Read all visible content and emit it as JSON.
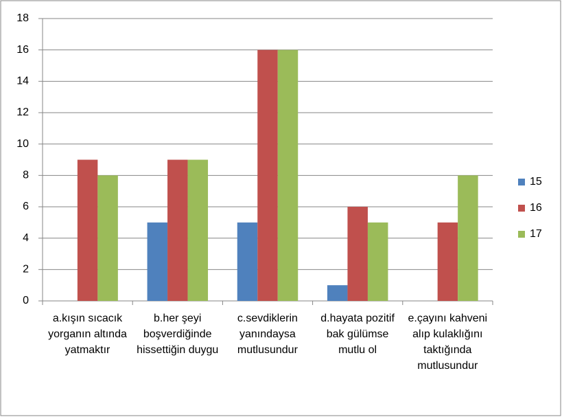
{
  "chart_data": {
    "type": "bar",
    "categories": [
      "a.kışın sıcacık yorganın altında yatmaktır",
      "b.her şeyi boşverdiğinde hissettiğin duygu",
      "c.sevdiklerin yanındaysa mutlusundur",
      "d.hayata pozitif bak gülümse mutlu ol",
      "e.çayını kahveni alıp kulaklığını taktığında mutlusundur"
    ],
    "series": [
      {
        "name": "15",
        "color": "#4f81bd",
        "values": [
          0,
          5,
          5,
          1,
          0
        ]
      },
      {
        "name": "16",
        "color": "#c0504d",
        "values": [
          9,
          9,
          16,
          6,
          5
        ]
      },
      {
        "name": "17",
        "color": "#9bbb59",
        "values": [
          8,
          9,
          16,
          5,
          8
        ]
      }
    ],
    "ylim": [
      0,
      18
    ],
    "yticks": [
      0,
      2,
      4,
      6,
      8,
      10,
      12,
      14,
      16,
      18
    ],
    "grid": true,
    "legend": "right"
  }
}
